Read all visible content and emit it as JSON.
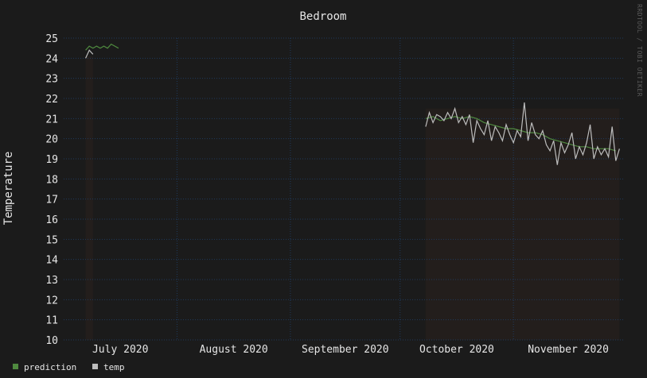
{
  "chart_data": {
    "type": "line",
    "title": "Bedroom",
    "ylabel": "Temperature",
    "xlabel": "",
    "credit": "RRDTOOL / TOBI OETIKER",
    "ylim": [
      10,
      25
    ],
    "yticks": [
      10,
      11,
      12,
      13,
      14,
      15,
      16,
      17,
      18,
      19,
      20,
      21,
      22,
      23,
      24,
      25
    ],
    "xlim": [
      "2020-07-01",
      "2020-12-01"
    ],
    "xticks": [
      {
        "label": "July 2020",
        "date": "2020-07-01"
      },
      {
        "label": "August 2020",
        "date": "2020-08-01"
      },
      {
        "label": "September 2020",
        "date": "2020-09-01"
      },
      {
        "label": "October 2020",
        "date": "2020-10-01"
      },
      {
        "label": "November 2020",
        "date": "2020-11-01"
      }
    ],
    "colors": {
      "background": "#1b1b1b",
      "grid": "#1f3a5c",
      "text": "#e6e6e6",
      "prediction": "#4f8a3f",
      "temp": "#bdbdbd",
      "area": "#231e1c"
    },
    "legend_position": "bottom-left",
    "series": [
      {
        "name": "prediction",
        "color": "#4f8a3f",
        "x": [
          "2020-07-07",
          "2020-07-08",
          "2020-07-09",
          "2020-07-10",
          "2020-07-11",
          "2020-07-12",
          "2020-07-13",
          "2020-07-14",
          "2020-07-15",
          "2020-07-16",
          "2020-10-08",
          "2020-10-10",
          "2020-10-12",
          "2020-10-14",
          "2020-10-16",
          "2020-10-18",
          "2020-10-20",
          "2020-10-22",
          "2020-10-24",
          "2020-10-26",
          "2020-10-28",
          "2020-10-30",
          "2020-11-01",
          "2020-11-03",
          "2020-11-05",
          "2020-11-07",
          "2020-11-09",
          "2020-11-11",
          "2020-11-13",
          "2020-11-15",
          "2020-11-17",
          "2020-11-19",
          "2020-11-21",
          "2020-11-23",
          "2020-11-25",
          "2020-11-27",
          "2020-11-29"
        ],
        "values": [
          24.4,
          24.6,
          24.5,
          24.6,
          24.5,
          24.6,
          24.5,
          24.7,
          24.6,
          24.5,
          21.0,
          21.1,
          20.9,
          21.0,
          21.1,
          21.0,
          21.1,
          21.0,
          20.8,
          20.7,
          20.6,
          20.5,
          20.5,
          20.4,
          20.3,
          20.3,
          20.2,
          20.0,
          19.9,
          19.8,
          19.7,
          19.6,
          19.6,
          19.5,
          19.5,
          19.5,
          19.4
        ]
      },
      {
        "name": "temp",
        "color": "#bdbdbd",
        "x": [
          "2020-07-07",
          "2020-07-08",
          "2020-07-09",
          "2020-10-08",
          "2020-10-09",
          "2020-10-10",
          "2020-10-11",
          "2020-10-12",
          "2020-10-13",
          "2020-10-14",
          "2020-10-15",
          "2020-10-16",
          "2020-10-17",
          "2020-10-18",
          "2020-10-19",
          "2020-10-20",
          "2020-10-21",
          "2020-10-22",
          "2020-10-23",
          "2020-10-24",
          "2020-10-25",
          "2020-10-26",
          "2020-10-27",
          "2020-10-28",
          "2020-10-29",
          "2020-10-30",
          "2020-10-31",
          "2020-11-01",
          "2020-11-02",
          "2020-11-03",
          "2020-11-04",
          "2020-11-05",
          "2020-11-06",
          "2020-11-07",
          "2020-11-08",
          "2020-11-09",
          "2020-11-10",
          "2020-11-11",
          "2020-11-12",
          "2020-11-13",
          "2020-11-14",
          "2020-11-15",
          "2020-11-16",
          "2020-11-17",
          "2020-11-18",
          "2020-11-19",
          "2020-11-20",
          "2020-11-21",
          "2020-11-22",
          "2020-11-23",
          "2020-11-24",
          "2020-11-25",
          "2020-11-26",
          "2020-11-27",
          "2020-11-28",
          "2020-11-29",
          "2020-11-30"
        ],
        "values": [
          24.0,
          24.4,
          24.2,
          20.6,
          21.3,
          20.8,
          21.2,
          21.1,
          20.9,
          21.3,
          21.0,
          21.5,
          20.8,
          21.1,
          20.7,
          21.2,
          19.8,
          20.9,
          20.5,
          20.2,
          20.9,
          19.9,
          20.6,
          20.3,
          19.9,
          20.7,
          20.2,
          19.8,
          20.4,
          20.1,
          21.8,
          19.9,
          20.8,
          20.2,
          20.0,
          20.4,
          19.7,
          19.4,
          19.9,
          18.7,
          19.8,
          19.3,
          19.7,
          20.3,
          19.0,
          19.6,
          19.2,
          19.8,
          20.7,
          19.0,
          19.6,
          19.2,
          19.5,
          19.1,
          20.6,
          18.9,
          19.5
        ]
      }
    ]
  }
}
